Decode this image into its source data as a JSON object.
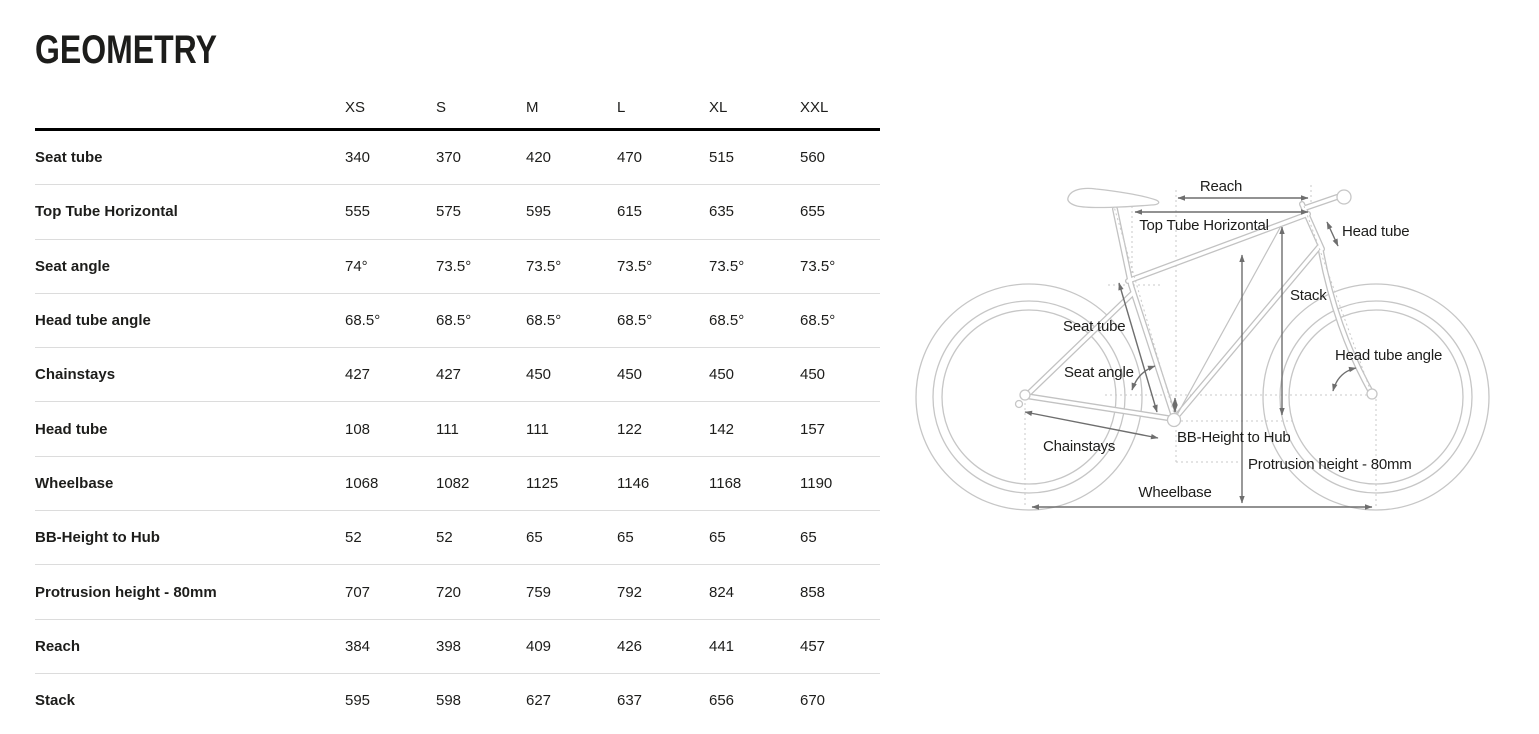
{
  "page": {
    "title": "GEOMETRY"
  },
  "table": {
    "sizes": [
      "XS",
      "S",
      "M",
      "L",
      "XL",
      "XXL"
    ],
    "rows": [
      {
        "label": "Seat tube",
        "values": [
          "340",
          "370",
          "420",
          "470",
          "515",
          "560"
        ]
      },
      {
        "label": "Top Tube Horizontal",
        "values": [
          "555",
          "575",
          "595",
          "615",
          "635",
          "655"
        ]
      },
      {
        "label": "Seat angle",
        "values": [
          "74°",
          "73.5°",
          "73.5°",
          "73.5°",
          "73.5°",
          "73.5°"
        ]
      },
      {
        "label": "Head tube angle",
        "values": [
          "68.5°",
          "68.5°",
          "68.5°",
          "68.5°",
          "68.5°",
          "68.5°"
        ]
      },
      {
        "label": "Chainstays",
        "values": [
          "427",
          "427",
          "450",
          "450",
          "450",
          "450"
        ]
      },
      {
        "label": "Head tube",
        "values": [
          "108",
          "111",
          "111",
          "122",
          "142",
          "157"
        ]
      },
      {
        "label": "Wheelbase",
        "values": [
          "1068",
          "1082",
          "1125",
          "1146",
          "1168",
          "1190"
        ]
      },
      {
        "label": "BB-Height to Hub",
        "values": [
          "52",
          "52",
          "65",
          "65",
          "65",
          "65"
        ]
      },
      {
        "label": "Protrusion height - 80mm",
        "values": [
          "707",
          "720",
          "759",
          "792",
          "824",
          "858"
        ]
      },
      {
        "label": "Reach",
        "values": [
          "384",
          "398",
          "409",
          "426",
          "441",
          "457"
        ]
      },
      {
        "label": "Stack",
        "values": [
          "595",
          "598",
          "627",
          "637",
          "656",
          "670"
        ]
      }
    ]
  },
  "diagram": {
    "labels": {
      "reach": "Reach",
      "top_tube_horizontal": "Top Tube Horizontal",
      "head_tube": "Head tube",
      "stack": "Stack",
      "seat_tube": "Seat tube",
      "seat_angle": "Seat angle",
      "head_tube_angle": "Head tube angle",
      "chainstays": "Chainstays",
      "bb_height_to_hub": "BB-Height to Hub",
      "protrusion_height": "Protrusion height - 80mm",
      "wheelbase": "Wheelbase"
    }
  },
  "colors": {
    "text": "#1d1d1b",
    "row_separator": "#dcdcdc",
    "header_rule": "#000000",
    "sketch_gray": "#c6c6c6",
    "dimension_gray": "#6e6e6e"
  },
  "chart_data": {
    "type": "table",
    "title": "GEOMETRY",
    "categories": [
      "XS",
      "S",
      "M",
      "L",
      "XL",
      "XXL"
    ],
    "series": [
      {
        "name": "Seat tube",
        "values": [
          340,
          370,
          420,
          470,
          515,
          560
        ]
      },
      {
        "name": "Top Tube Horizontal",
        "values": [
          555,
          575,
          595,
          615,
          635,
          655
        ]
      },
      {
        "name": "Seat angle",
        "values": [
          "74°",
          "73.5°",
          "73.5°",
          "73.5°",
          "73.5°",
          "73.5°"
        ]
      },
      {
        "name": "Head tube angle",
        "values": [
          "68.5°",
          "68.5°",
          "68.5°",
          "68.5°",
          "68.5°",
          "68.5°"
        ]
      },
      {
        "name": "Chainstays",
        "values": [
          427,
          427,
          450,
          450,
          450,
          450
        ]
      },
      {
        "name": "Head tube",
        "values": [
          108,
          111,
          111,
          122,
          142,
          157
        ]
      },
      {
        "name": "Wheelbase",
        "values": [
          1068,
          1082,
          1125,
          1146,
          1168,
          1190
        ]
      },
      {
        "name": "BB-Height to Hub",
        "values": [
          52,
          52,
          65,
          65,
          65,
          65
        ]
      },
      {
        "name": "Protrusion height - 80mm",
        "values": [
          707,
          720,
          759,
          792,
          824,
          858
        ]
      },
      {
        "name": "Reach",
        "values": [
          384,
          398,
          409,
          426,
          441,
          457
        ]
      },
      {
        "name": "Stack",
        "values": [
          595,
          598,
          627,
          637,
          656,
          670
        ]
      }
    ]
  }
}
